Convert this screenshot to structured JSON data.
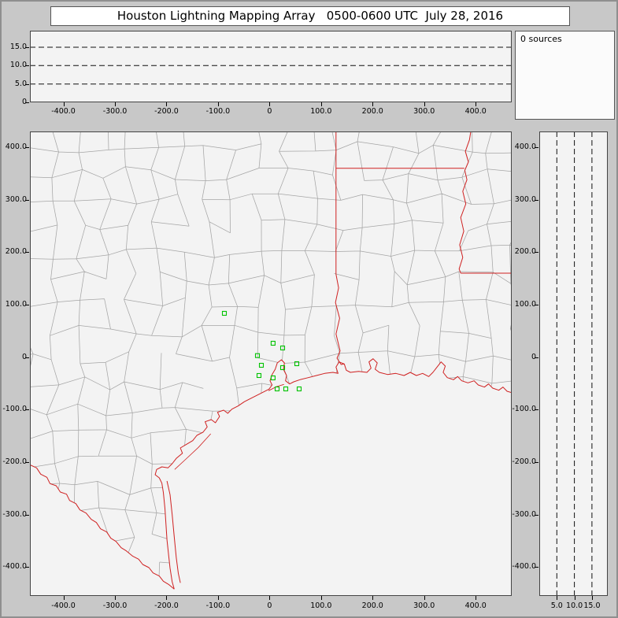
{
  "title": "Houston Lightning Mapping Array   0500-0600 UTC  July 28, 2016",
  "sources_label": "0 sources",
  "colors": {
    "chrome_bg": "#c8c8c8",
    "panel_bg": "#f3f3f3",
    "axis": "#444444",
    "dash": "#111111",
    "county_gray": "#a5a5a5",
    "border_red": "#cf2020",
    "station_green": "#00c300"
  },
  "axes": {
    "x_range": [
      -465,
      470
    ],
    "y_range": [
      -455,
      430
    ],
    "alt_range": [
      0,
      19.5
    ],
    "x_ticks": {
      "values": [
        -400,
        -300,
        -200,
        -100,
        0,
        100,
        200,
        300,
        400
      ],
      "labels": [
        "-400.0",
        "-300.0",
        "-200.0",
        "-100.0",
        "0",
        "100.0",
        "200.0",
        "300.0",
        "400.0"
      ]
    },
    "y_ticks": {
      "values": [
        400,
        300,
        200,
        100,
        0,
        -100,
        -200,
        -300,
        -400
      ],
      "labels": [
        "400.0",
        "300.0",
        "200.0",
        "100.0",
        "0",
        "-100.0",
        "-200.0",
        "-300.0",
        "-400.0"
      ]
    },
    "alt_ticks_top": {
      "values": [
        15,
        10,
        5,
        0
      ],
      "labels": [
        "15.0",
        "10.0",
        "5.0",
        "0"
      ]
    },
    "alt_ticks_right": {
      "values": [
        5,
        10,
        15
      ],
      "labels": [
        "5.0",
        "10.0",
        "15.0"
      ]
    }
  },
  "chart_data": {
    "type": "scatter",
    "title": "Houston Lightning Mapping Array",
    "time_range_utc": "0500-0600 UTC",
    "date": "July 28, 2016",
    "sources_count": 0,
    "panels": [
      {
        "id": "altitude-vs-east-west",
        "xlim_km": [
          -465,
          470
        ],
        "ylim_km": [
          0,
          19.5
        ],
        "reference_lines_km": [
          5,
          10,
          15
        ],
        "points": []
      },
      {
        "id": "plan-view-map",
        "xlim_km": [
          -465,
          470
        ],
        "ylim_km": [
          -455,
          430
        ],
        "points": [],
        "note": "county map of SE Texas / W Louisiana with LMA station markers"
      },
      {
        "id": "altitude-vs-north-south",
        "xlim_km": [
          0,
          19.5
        ],
        "ylim_km": [
          -455,
          430
        ],
        "reference_lines_km": [
          5,
          10,
          15
        ],
        "points": []
      }
    ],
    "stations_km": [
      [
        -87.7,
        83.5
      ],
      [
        7.0,
        26.5
      ],
      [
        25.4,
        17.5
      ],
      [
        -23.5,
        3.0
      ],
      [
        -15.9,
        -15.5
      ],
      [
        -20.4,
        -35.0
      ],
      [
        7.0,
        -39.5
      ],
      [
        25.4,
        -20.0
      ],
      [
        52.9,
        -12.5
      ],
      [
        14.7,
        -60.5
      ],
      [
        31.5,
        -60.5
      ],
      [
        57.5,
        -60.5
      ]
    ]
  },
  "map": {
    "borders": {
      "coastline": [
        [
          -185,
          -442
        ],
        [
          -189,
          -428
        ],
        [
          -193,
          -402
        ],
        [
          -196,
          -376
        ],
        [
          -199,
          -348
        ],
        [
          -201,
          -318
        ],
        [
          -203,
          -288
        ],
        [
          -206,
          -258
        ],
        [
          -209,
          -240
        ],
        [
          -214,
          -230
        ],
        [
          -222,
          -224
        ],
        [
          -219,
          -214
        ],
        [
          -209,
          -209
        ],
        [
          -197,
          -211
        ],
        [
          -189,
          -203
        ],
        [
          -181,
          -193
        ],
        [
          -169,
          -183
        ],
        [
          -173,
          -173
        ],
        [
          -161,
          -166
        ],
        [
          -149,
          -159
        ],
        [
          -141,
          -149
        ],
        [
          -129,
          -143
        ],
        [
          -121,
          -133
        ],
        [
          -125,
          -123
        ],
        [
          -113,
          -119
        ],
        [
          -105,
          -125
        ],
        [
          -97,
          -113
        ],
        [
          -101,
          -105
        ],
        [
          -89,
          -101
        ],
        [
          -81,
          -107
        ],
        [
          -73,
          -99
        ],
        [
          -61,
          -93
        ],
        [
          -49,
          -85
        ],
        [
          -37,
          -79
        ],
        [
          -25,
          -73
        ],
        [
          -13,
          -67
        ],
        [
          -1,
          -61
        ],
        [
          5,
          -53
        ],
        [
          1,
          -45
        ],
        [
          5,
          -33
        ],
        [
          11,
          -23
        ],
        [
          15,
          -11
        ],
        [
          23,
          -5
        ],
        [
          29,
          -11
        ],
        [
          27,
          -23
        ],
        [
          33,
          -35
        ],
        [
          31,
          -45
        ],
        [
          39,
          -51
        ],
        [
          47,
          -47
        ],
        [
          59,
          -43
        ],
        [
          75,
          -39
        ],
        [
          91,
          -35
        ],
        [
          107,
          -31
        ],
        [
          123,
          -29
        ],
        [
          133,
          -31
        ],
        [
          129,
          -19
        ],
        [
          135,
          -9
        ],
        [
          145,
          -13
        ],
        [
          149,
          -25
        ],
        [
          157,
          -29
        ],
        [
          173,
          -27
        ],
        [
          189,
          -29
        ],
        [
          197,
          -21
        ],
        [
          193,
          -9
        ],
        [
          201,
          -3
        ],
        [
          209,
          -11
        ],
        [
          205,
          -23
        ],
        [
          213,
          -29
        ],
        [
          229,
          -33
        ],
        [
          245,
          -31
        ],
        [
          261,
          -35
        ],
        [
          273,
          -29
        ],
        [
          285,
          -35
        ],
        [
          297,
          -31
        ],
        [
          309,
          -37
        ],
        [
          317,
          -29
        ],
        [
          325,
          -19
        ],
        [
          333,
          -9
        ],
        [
          341,
          -17
        ],
        [
          337,
          -29
        ],
        [
          345,
          -39
        ],
        [
          357,
          -43
        ],
        [
          365,
          -37
        ],
        [
          373,
          -45
        ],
        [
          385,
          -49
        ],
        [
          397,
          -45
        ],
        [
          405,
          -53
        ],
        [
          417,
          -57
        ],
        [
          425,
          -51
        ],
        [
          433,
          -59
        ],
        [
          445,
          -63
        ],
        [
          453,
          -57
        ],
        [
          461,
          -65
        ],
        [
          475,
          -69
        ]
      ],
      "rio_grande": [
        [
          -470,
          -203
        ],
        [
          -452,
          -211
        ],
        [
          -444,
          -223
        ],
        [
          -432,
          -229
        ],
        [
          -426,
          -241
        ],
        [
          -414,
          -245
        ],
        [
          -406,
          -257
        ],
        [
          -394,
          -261
        ],
        [
          -388,
          -273
        ],
        [
          -376,
          -279
        ],
        [
          -368,
          -291
        ],
        [
          -356,
          -297
        ],
        [
          -346,
          -309
        ],
        [
          -336,
          -315
        ],
        [
          -328,
          -327
        ],
        [
          -316,
          -333
        ],
        [
          -308,
          -345
        ],
        [
          -298,
          -351
        ],
        [
          -288,
          -363
        ],
        [
          -278,
          -369
        ],
        [
          -266,
          -379
        ],
        [
          -254,
          -385
        ],
        [
          -246,
          -395
        ],
        [
          -234,
          -401
        ],
        [
          -226,
          -411
        ],
        [
          -214,
          -417
        ],
        [
          -206,
          -427
        ],
        [
          -196,
          -433
        ],
        [
          -185,
          -442
        ]
      ],
      "tx_east_border": [
        [
          129,
          445
        ],
        [
          129,
          158
        ],
        [
          134,
          132
        ],
        [
          128,
          104
        ],
        [
          136,
          74
        ],
        [
          129,
          44
        ],
        [
          137,
          12
        ],
        [
          131,
          -2
        ],
        [
          139,
          -14
        ],
        [
          145,
          -13
        ]
      ],
      "ar_la_border": [
        [
          129,
          360
        ],
        [
          378,
          360
        ]
      ],
      "mississippi_river": [
        [
          393,
          445
        ],
        [
          388,
          414
        ],
        [
          380,
          392
        ],
        [
          386,
          372
        ],
        [
          379,
          356
        ],
        [
          383,
          338
        ],
        [
          375,
          316
        ],
        [
          381,
          292
        ],
        [
          371,
          266
        ],
        [
          377,
          240
        ],
        [
          369,
          214
        ],
        [
          375,
          190
        ],
        [
          368,
          168
        ],
        [
          371,
          160
        ]
      ],
      "la_ms_border": [
        [
          371,
          160
        ],
        [
          480,
          160
        ]
      ],
      "padre_island": [
        [
          -199,
          -236
        ],
        [
          -193,
          -262
        ],
        [
          -189,
          -300
        ],
        [
          -185,
          -342
        ],
        [
          -181,
          -382
        ],
        [
          -177,
          -412
        ],
        [
          -173,
          -430
        ]
      ],
      "barrier_islands_ne": [
        [
          -184,
          -214
        ],
        [
          -162,
          -194
        ],
        [
          -138,
          -172
        ],
        [
          -114,
          -146
        ]
      ],
      "galveston_island": [
        [
          -2,
          -64
        ],
        [
          14,
          -56
        ],
        [
          28,
          -52
        ]
      ]
    }
  }
}
